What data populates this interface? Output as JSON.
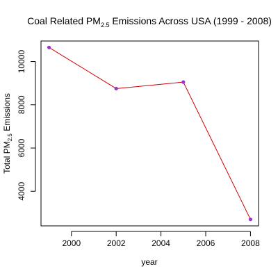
{
  "chart_data": {
    "type": "line",
    "title": {
      "prefix": "Coal Related PM",
      "subscript": "2.5",
      "suffix": " Emissions Across USA (1999 - 2008)"
    },
    "xlabel": "year",
    "ylabel": {
      "prefix": "Total PM",
      "subscript": "2.5",
      "suffix": " Emissions"
    },
    "x": [
      1999,
      2002,
      2005,
      2008
    ],
    "series": [
      {
        "values": [
          10650,
          8750,
          9050,
          2700
        ]
      }
    ],
    "xlim": [
      1998.64,
      2008.36
    ],
    "ylim": [
      2400,
      10950
    ],
    "xticks": [
      2000,
      2002,
      2004,
      2006,
      2008
    ],
    "yticks": [
      4000,
      6000,
      8000,
      10000
    ],
    "grid": false,
    "colors": {
      "line": "#cc0000",
      "points": "#9933cc",
      "axis": "#000000"
    }
  }
}
